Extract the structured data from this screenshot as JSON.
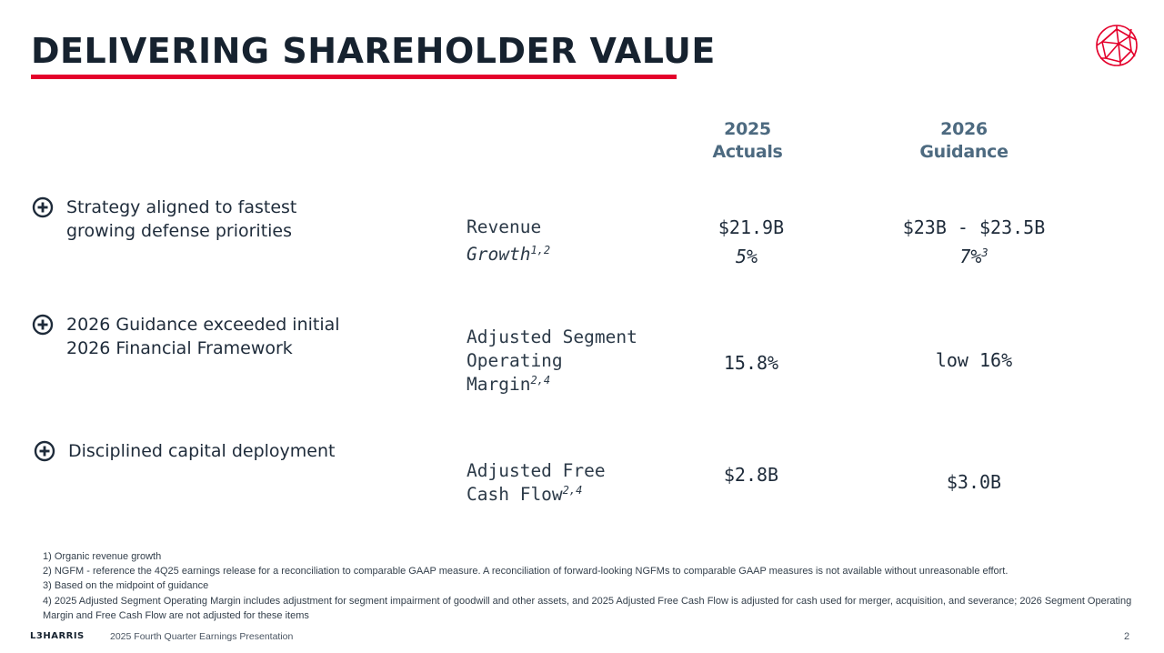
{
  "slide": {
    "title": "DELIVERING SHAREHOLDER VALUE",
    "accent_color": "#e4002b",
    "header_color": "#4d6a80"
  },
  "columns": {
    "actuals": {
      "year": "2025",
      "label": "Actuals"
    },
    "guidance": {
      "year": "2026",
      "label": "Guidance"
    }
  },
  "bullets": [
    {
      "icon": "plus-circle-icon",
      "text": "Strategy aligned to fastest growing defense priorities"
    },
    {
      "icon": "plus-circle-icon",
      "text": "2026 Guidance exceeded initial 2026 Financial Framework"
    },
    {
      "icon": "plus-circle-icon",
      "text": "Disciplined capital deployment"
    }
  ],
  "metrics": {
    "revenue": {
      "label": "Revenue",
      "actual": "$21.9B",
      "guidance": "$23B - $23.5B"
    },
    "growth": {
      "label": "Growth",
      "sup": "1,2",
      "actual": "5%",
      "guidance": "7%",
      "guidance_sup": "3"
    },
    "margin": {
      "line1": "Adjusted Segment",
      "line2": "Operating",
      "line3": "Margin",
      "sup": "2,4",
      "actual": "15.8%",
      "guidance": "low 16%"
    },
    "fcf": {
      "line1": "Adjusted Free",
      "line2": "Cash Flow",
      "sup": "2,4",
      "actual": "$2.8B",
      "guidance": "$3.0B"
    }
  },
  "footnotes": [
    "1) Organic revenue growth",
    "2) NGFM - reference the 4Q25 earnings release for a reconciliation to comparable GAAP measure. A reconciliation of forward-looking NGFMs to comparable GAAP measures is not available without unreasonable effort.",
    "3) Based on the midpoint of guidance",
    "4) 2025 Adjusted Segment Operating Margin includes adjustment for segment impairment of goodwill and other assets, and 2025 Adjusted Free Cash Flow is adjusted for cash used for merger, acquisition, and severance; 2026 Segment Operating Margin and Free Cash Flow are not adjusted for these items"
  ],
  "footer": {
    "brand": "L3HARRIS",
    "presentation": "2025 Fourth Quarter Earnings Presentation",
    "page_number": "2"
  }
}
